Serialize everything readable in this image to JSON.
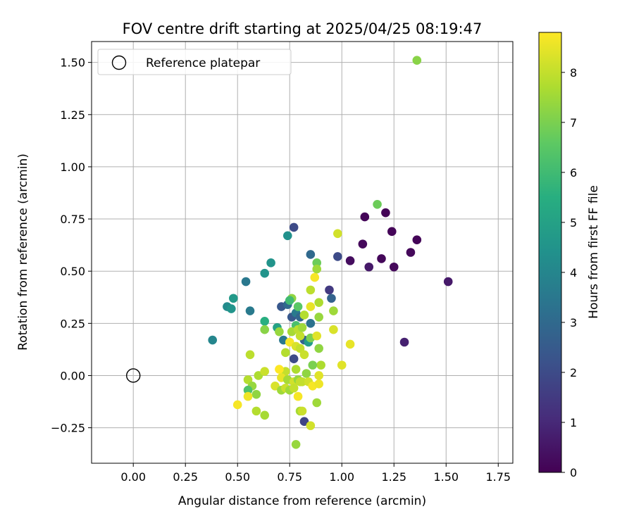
{
  "chart_data": {
    "type": "scatter",
    "title": "FOV centre drift starting at 2025/04/25 08:19:47",
    "xlabel": "Angular distance from reference (arcmin)",
    "ylabel": "Rotation from reference (arcmin)",
    "xlim": [
      -0.2,
      1.82
    ],
    "ylim": [
      -0.42,
      1.6
    ],
    "xticks": [
      "0.00",
      "0.25",
      "0.50",
      "0.75",
      "1.00",
      "1.25",
      "1.50",
      "1.75"
    ],
    "xtick_values": [
      0,
      0.25,
      0.5,
      0.75,
      1.0,
      1.25,
      1.5,
      1.75
    ],
    "yticks": [
      "−0.25",
      "0.00",
      "0.25",
      "0.50",
      "0.75",
      "1.00",
      "1.25",
      "1.50"
    ],
    "ytick_values": [
      -0.25,
      0,
      0.25,
      0.5,
      0.75,
      1.0,
      1.25,
      1.5
    ],
    "grid": true,
    "legend": {
      "position": "top-left",
      "label": "Reference platepar"
    },
    "reference_point": {
      "x": 0.0,
      "y": 0.0
    },
    "colorbar": {
      "label": "Hours from first FF file",
      "range": [
        0,
        8.8
      ],
      "ticks": [
        "0",
        "1",
        "2",
        "3",
        "4",
        "5",
        "6",
        "7",
        "8"
      ],
      "tick_values": [
        0,
        1,
        2,
        3,
        4,
        5,
        6,
        7,
        8
      ],
      "colormap": "viridis"
    },
    "points": [
      [
        1.51,
        0.45,
        0.6
      ],
      [
        1.36,
        0.65,
        0.1
      ],
      [
        1.33,
        0.59,
        0.2
      ],
      [
        1.25,
        0.52,
        0.2
      ],
      [
        1.24,
        0.69,
        0.1
      ],
      [
        1.21,
        0.78,
        0.05
      ],
      [
        1.19,
        0.56,
        0.15
      ],
      [
        1.13,
        0.52,
        0.6
      ],
      [
        1.11,
        0.76,
        0.1
      ],
      [
        1.1,
        0.63,
        0.2
      ],
      [
        1.04,
        0.55,
        0.3
      ],
      [
        1.3,
        0.16,
        0.8
      ],
      [
        0.98,
        0.57,
        2.0
      ],
      [
        0.94,
        0.41,
        1.5
      ],
      [
        0.95,
        0.37,
        2.8
      ],
      [
        0.77,
        0.71,
        2.0
      ],
      [
        0.74,
        0.67,
        4.4
      ],
      [
        0.85,
        0.58,
        3.0
      ],
      [
        0.66,
        0.54,
        4.5
      ],
      [
        0.63,
        0.49,
        4.5
      ],
      [
        0.54,
        0.45,
        3.5
      ],
      [
        0.48,
        0.37,
        4.7
      ],
      [
        0.45,
        0.33,
        4.2
      ],
      [
        0.47,
        0.32,
        4.5
      ],
      [
        0.56,
        0.31,
        3.6
      ],
      [
        0.38,
        0.17,
        4.0
      ],
      [
        0.71,
        0.33,
        2.4
      ],
      [
        0.74,
        0.34,
        3.0
      ],
      [
        0.76,
        0.28,
        2.4
      ],
      [
        0.78,
        0.3,
        3.6
      ],
      [
        0.8,
        0.28,
        2.9
      ],
      [
        0.85,
        0.25,
        3.3
      ],
      [
        0.63,
        0.26,
        5.5
      ],
      [
        0.69,
        0.23,
        5.0
      ],
      [
        0.72,
        0.17,
        3.5
      ],
      [
        0.77,
        0.08,
        2.0
      ],
      [
        0.78,
        0.24,
        6.2
      ],
      [
        0.82,
        0.17,
        2.8
      ],
      [
        0.84,
        0.16,
        4.8
      ],
      [
        0.82,
        -0.22,
        1.8
      ],
      [
        1.36,
        1.51,
        7.2
      ],
      [
        1.17,
        0.82,
        6.8
      ],
      [
        0.98,
        0.68,
        8.2
      ],
      [
        0.88,
        0.54,
        6.8
      ],
      [
        0.88,
        0.51,
        7.5
      ],
      [
        0.87,
        0.47,
        8.7
      ],
      [
        0.85,
        0.41,
        7.9
      ],
      [
        0.76,
        0.37,
        7.3
      ],
      [
        0.75,
        0.36,
        6.0
      ],
      [
        0.79,
        0.33,
        6.5
      ],
      [
        0.85,
        0.33,
        8.5
      ],
      [
        0.89,
        0.35,
        7.7
      ],
      [
        0.96,
        0.31,
        7.5
      ],
      [
        0.82,
        0.29,
        7.8
      ],
      [
        0.89,
        0.28,
        7.4
      ],
      [
        0.63,
        0.22,
        7.2
      ],
      [
        0.7,
        0.21,
        7.4
      ],
      [
        0.76,
        0.21,
        7.6
      ],
      [
        0.79,
        0.22,
        7.9
      ],
      [
        0.8,
        0.19,
        8.0
      ],
      [
        0.81,
        0.23,
        7.5
      ],
      [
        0.75,
        0.16,
        8.7
      ],
      [
        0.78,
        0.14,
        8.3
      ],
      [
        0.8,
        0.13,
        8.0
      ],
      [
        0.82,
        0.1,
        8.1
      ],
      [
        0.73,
        0.11,
        7.8
      ],
      [
        0.85,
        0.18,
        7.0
      ],
      [
        0.88,
        0.19,
        8.4
      ],
      [
        0.89,
        0.13,
        7.3
      ],
      [
        0.96,
        0.22,
        8.3
      ],
      [
        1.04,
        0.15,
        8.5
      ],
      [
        1.0,
        0.05,
        8.4
      ],
      [
        0.9,
        0.05,
        7.7
      ],
      [
        0.86,
        0.05,
        7.0
      ],
      [
        0.83,
        0.01,
        7.3
      ],
      [
        0.78,
        0.03,
        7.7
      ],
      [
        0.73,
        0.02,
        8.0
      ],
      [
        0.7,
        0.03,
        8.8
      ],
      [
        0.71,
        -0.01,
        8.5
      ],
      [
        0.74,
        -0.02,
        7.6
      ],
      [
        0.77,
        -0.03,
        8.2
      ],
      [
        0.79,
        -0.02,
        7.4
      ],
      [
        0.81,
        -0.03,
        8.0
      ],
      [
        0.84,
        -0.03,
        8.2
      ],
      [
        0.86,
        -0.05,
        8.7
      ],
      [
        0.89,
        -0.04,
        8.6
      ],
      [
        0.89,
        0.0,
        8.4
      ],
      [
        0.56,
        0.1,
        7.9
      ],
      [
        0.6,
        0.0,
        7.7
      ],
      [
        0.63,
        0.02,
        8.1
      ],
      [
        0.55,
        -0.02,
        7.8
      ],
      [
        0.57,
        -0.05,
        7.4
      ],
      [
        0.55,
        -0.07,
        6.3
      ],
      [
        0.59,
        -0.09,
        7.3
      ],
      [
        0.5,
        -0.14,
        8.7
      ],
      [
        0.55,
        -0.1,
        8.6
      ],
      [
        0.59,
        -0.17,
        7.8
      ],
      [
        0.63,
        -0.19,
        7.6
      ],
      [
        0.68,
        -0.05,
        8.3
      ],
      [
        0.71,
        -0.07,
        7.5
      ],
      [
        0.73,
        -0.06,
        8.1
      ],
      [
        0.75,
        -0.07,
        7.5
      ],
      [
        0.77,
        -0.06,
        8.0
      ],
      [
        0.79,
        -0.1,
        8.7
      ],
      [
        0.8,
        -0.17,
        7.6
      ],
      [
        0.81,
        -0.17,
        8.1
      ],
      [
        0.85,
        -0.24,
        8.2
      ],
      [
        0.88,
        -0.13,
        7.5
      ],
      [
        0.78,
        -0.33,
        7.4
      ],
      [
        0.8,
        -0.03,
        8.0
      ]
    ]
  }
}
